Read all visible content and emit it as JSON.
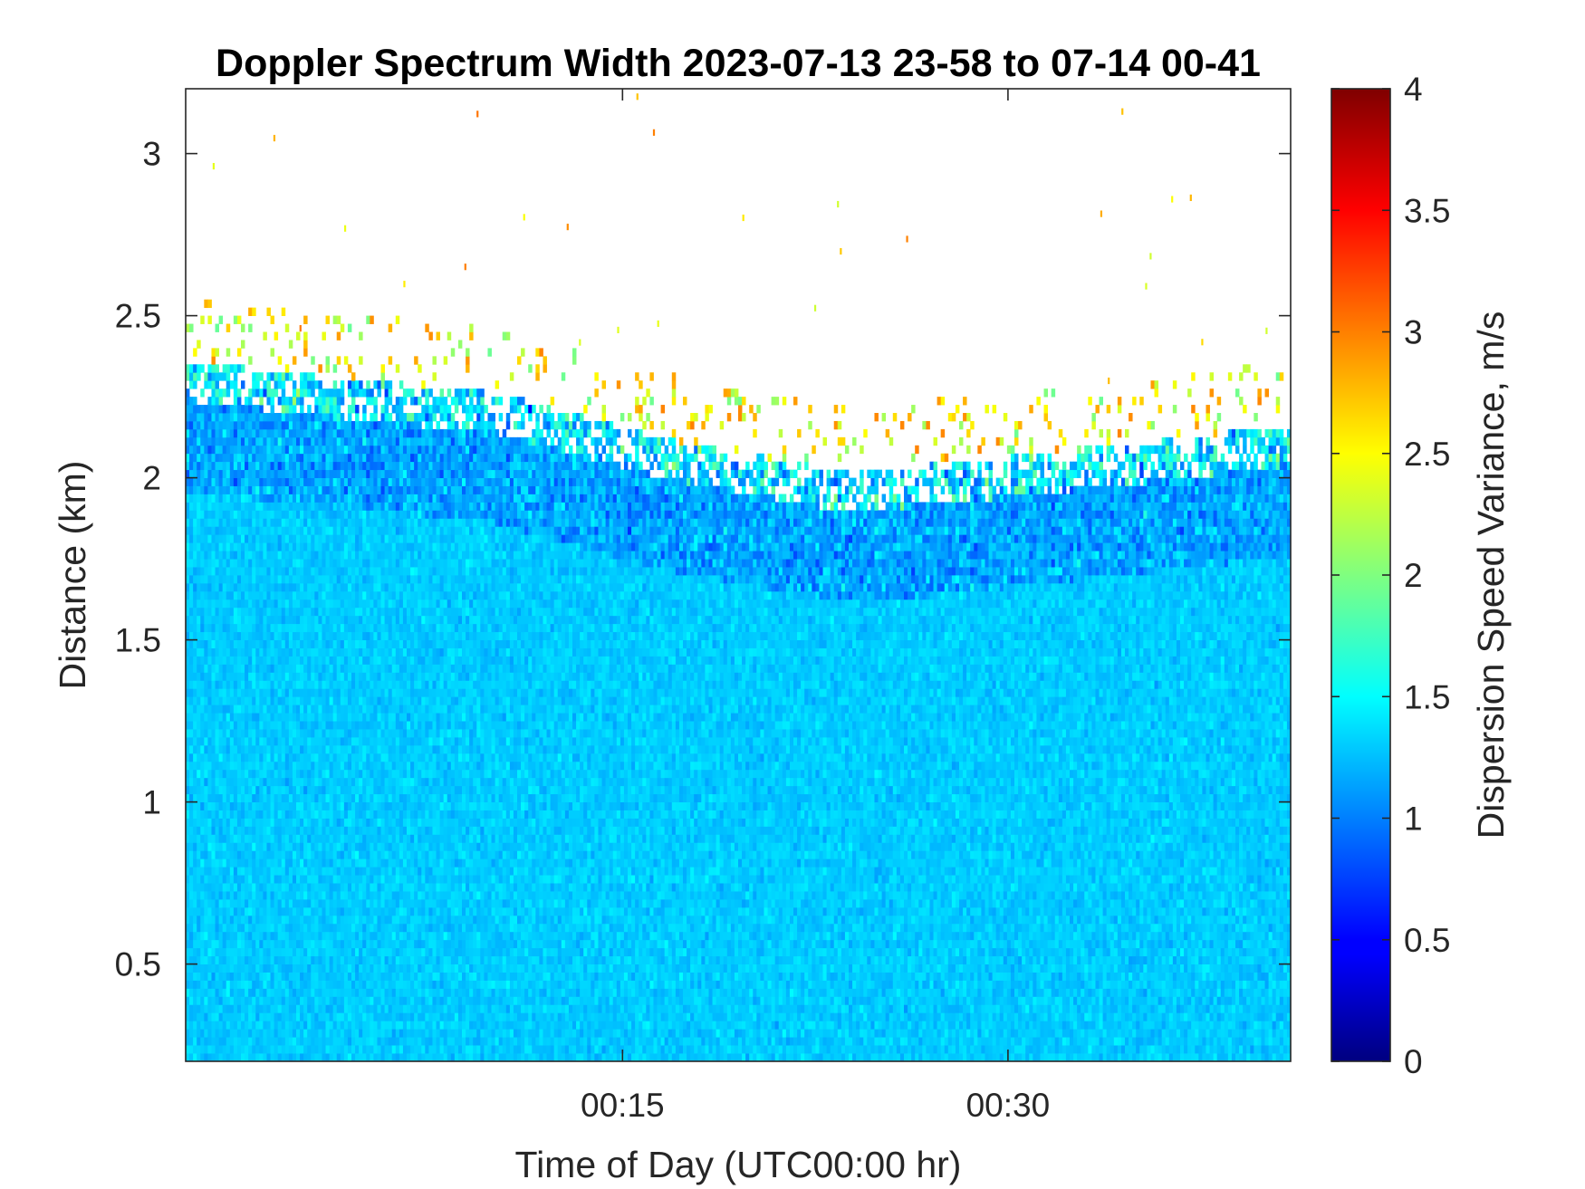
{
  "chart_data": {
    "type": "heatmap",
    "title": "Doppler Spectrum Width 2023-07-13 23-58 to 07-14 00-41",
    "xlabel": "Time of Day (UTC00:00 hr)",
    "ylabel": "Distance (km)",
    "x_range": [
      "23:58",
      "00:41"
    ],
    "x_ticks": [
      {
        "label": "00:15",
        "minutes_after_midnight": 15
      },
      {
        "label": "00:30",
        "minutes_after_midnight": 30
      }
    ],
    "y_range": [
      0.2,
      3.2
    ],
    "y_ticks": [
      0.5,
      1,
      1.5,
      2,
      2.5,
      3
    ],
    "colorbar": {
      "label": "Dispersion Speed Variance, m/s",
      "colormap": "jet",
      "range": [
        0,
        4
      ],
      "ticks": [
        0,
        0.5,
        1,
        1.5,
        2,
        2.5,
        3,
        3.5,
        4
      ]
    },
    "data_description": {
      "typical_value_below_1_8km": 1.3,
      "typical_value_near_top_of_return": 1.0,
      "signal_top_km": [
        {
          "minutes": -2,
          "top_km": 2.35
        },
        {
          "minutes": 3,
          "top_km": 2.3
        },
        {
          "minutes": 10,
          "top_km": 2.25
        },
        {
          "minutes": 17,
          "top_km": 2.1
        },
        {
          "minutes": 24,
          "top_km": 2.0
        },
        {
          "minutes": 30,
          "top_km": 2.05
        },
        {
          "minutes": 36,
          "top_km": 2.1
        },
        {
          "minutes": 41,
          "top_km": 2.15
        }
      ],
      "sparse_outliers_above_top": {
        "value_range": [
          2.3,
          3.1
        ],
        "max_height_km": 3.2
      }
    },
    "grid": false
  }
}
